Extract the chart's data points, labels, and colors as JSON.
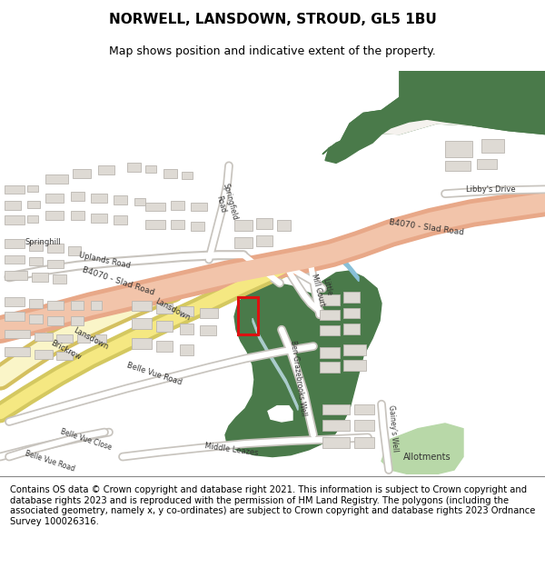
{
  "title_line1": "NORWELL, LANSDOWN, STROUD, GL5 1BU",
  "title_line2": "Map shows position and indicative extent of the property.",
  "copyright_text": "Contains OS data © Crown copyright and database right 2021. This information is subject to Crown copyright and database rights 2023 and is reproduced with the permission of HM Land Registry. The polygons (including the associated geometry, namely x, y co-ordinates) are subject to Crown copyright and database rights 2023 Ordnance Survey 100026316.",
  "map_bg": "#f5f2ee",
  "road_salmon_fill": "#f2c4aa",
  "road_salmon_edge": "#e8a888",
  "road_yellow_fill": "#f5e882",
  "road_yellow_pale": "#faf5c8",
  "road_white_fill": "#ffffff",
  "road_white_edge": "#c8c4be",
  "building_fill": "#dedad4",
  "building_edge": "#bab6b0",
  "green_dark": "#4a7a4a",
  "green_light": "#b8d8a8",
  "water_color": "#88c0d8",
  "highlight_red": "#dd1111",
  "text_color": "#333333"
}
